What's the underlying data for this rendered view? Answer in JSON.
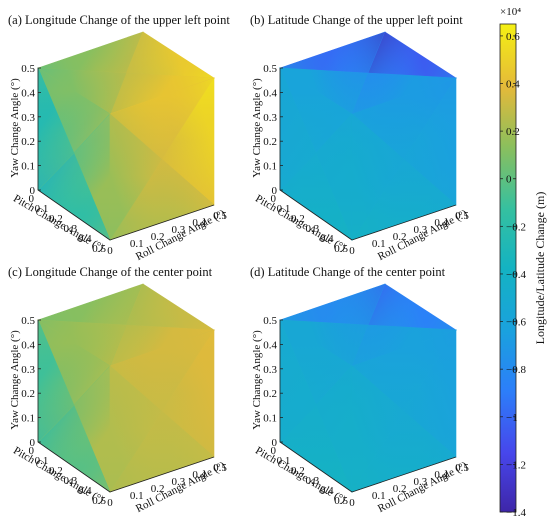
{
  "figure": {
    "colorbar": {
      "label": "Longitude/Latitude Change (m)",
      "exponent": "×10⁴",
      "ticks": [
        "0.6",
        "0.4",
        "0.2",
        "0",
        "−0.2",
        "−0.4",
        "−0.6",
        "−0.8",
        "−1",
        "−1.2",
        "−1.4"
      ],
      "tick_values": [
        0.6,
        0.4,
        0.2,
        0,
        -0.2,
        -0.4,
        -0.6,
        -0.8,
        -1,
        -1.2,
        -1.4
      ],
      "range": [
        -1.4,
        0.65
      ],
      "colormap": "parula"
    }
  },
  "chart_data": [
    {
      "type": "heatmap",
      "title": "(a) Longitude Change of the upper left point",
      "xlabel": "Roll Change Angle (°)",
      "ylabel": "Pitch Change Angle (°)",
      "zlabel": "Yaw Change Angle (°)",
      "xticks": [
        "0",
        "0.1",
        "0.2",
        "0.3",
        "0.4",
        "0.5"
      ],
      "yticks": [
        "0",
        "0.1",
        "0.2",
        "0.3",
        "0.4",
        "0.5"
      ],
      "zticks": [
        "0",
        "0.1",
        "0.2",
        "0.3",
        "0.4",
        "0.5"
      ],
      "xlim": [
        0,
        0.5
      ],
      "ylim": [
        0,
        0.5
      ],
      "zlim": [
        0,
        0.5
      ],
      "value_units": "×10⁴ m",
      "face_values": {
        "top": {
          "left": -0.05,
          "back": 0.3,
          "right": 0.62,
          "front": 0.25
        },
        "left": {
          "top_left": -0.05,
          "top_right": 0.25,
          "bottom_right": 0.1,
          "bottom_left": -0.45
        },
        "right": {
          "top_left": 0.25,
          "top_right": 0.62,
          "bottom_right": 0.4,
          "bottom_left": 0.1
        }
      }
    },
    {
      "type": "heatmap",
      "title": "(b) Latitude Change of the upper left point",
      "xlabel": "Roll Change Angle (°)",
      "ylabel": "Pitch Change Angle (°)",
      "zlabel": "Yaw Change Angle (°)",
      "xticks": [
        "0",
        "0.1",
        "0.2",
        "0.3",
        "0.4",
        "0.5"
      ],
      "yticks": [
        "0",
        "0.1",
        "0.2",
        "0.3",
        "0.4",
        "0.5"
      ],
      "zticks": [
        "0",
        "0.1",
        "0.2",
        "0.3",
        "0.4",
        "0.5"
      ],
      "xlim": [
        0,
        0.5
      ],
      "ylim": [
        0,
        0.5
      ],
      "zlim": [
        0,
        0.5
      ],
      "value_units": "×10⁴ m",
      "face_values": {
        "top": {
          "left": -0.6,
          "back": -1.35,
          "right": -0.75,
          "front": -0.6
        },
        "left": {
          "top_left": -0.6,
          "top_right": -0.6,
          "bottom_right": -0.35,
          "bottom_left": -0.5
        },
        "right": {
          "top_left": -0.6,
          "top_right": -0.75,
          "bottom_right": -0.55,
          "bottom_left": -0.35
        }
      }
    },
    {
      "type": "heatmap",
      "title": "(c) Longitude Change of the center point",
      "xlabel": "Roll Change Angle (°)",
      "ylabel": "Pitch Change Angle (°)",
      "zlabel": "Yaw Change Angle (°)",
      "xticks": [
        "0",
        "0.1",
        "0.2",
        "0.3",
        "0.4",
        "0.5"
      ],
      "yticks": [
        "0",
        "0.1",
        "0.2",
        "0.3",
        "0.4",
        "0.5"
      ],
      "zticks": [
        "0",
        "0.1",
        "0.2",
        "0.3",
        "0.4",
        "0.5"
      ],
      "xlim": [
        0,
        0.5
      ],
      "ylim": [
        0,
        0.5
      ],
      "zlim": [
        0,
        0.5
      ],
      "value_units": "×10⁴ m",
      "face_values": {
        "top": {
          "left": 0.05,
          "back": 0.2,
          "right": 0.4,
          "front": 0.28
        },
        "left": {
          "top_left": 0.05,
          "top_right": 0.28,
          "bottom_right": 0.2,
          "bottom_left": -0.25
        },
        "right": {
          "top_left": 0.28,
          "top_right": 0.4,
          "bottom_right": 0.32,
          "bottom_left": 0.2
        }
      }
    },
    {
      "type": "heatmap",
      "title": "(d) Latitude Change  of the center point",
      "xlabel": "Roll Change Angle (°)",
      "ylabel": "Pitch Change Angle (°)",
      "zlabel": "Yaw Change Angle (°)",
      "xticks": [
        "0",
        "0.1",
        "0.2",
        "0.3",
        "0.4",
        "0.5"
      ],
      "yticks": [
        "0",
        "0.1",
        "0.2",
        "0.3",
        "0.4",
        "0.5"
      ],
      "zticks": [
        "0",
        "0.1",
        "0.2",
        "0.3",
        "0.4",
        "0.5"
      ],
      "xlim": [
        0,
        0.5
      ],
      "ylim": [
        0,
        0.5
      ],
      "zlim": [
        0,
        0.5
      ],
      "value_units": "×10⁴ m",
      "face_values": {
        "top": {
          "left": -0.55,
          "back": -1.05,
          "right": -0.7,
          "front": -0.55
        },
        "left": {
          "top_left": -0.55,
          "top_right": -0.55,
          "bottom_right": -0.35,
          "bottom_left": -0.45
        },
        "right": {
          "top_left": -0.55,
          "top_right": -0.7,
          "bottom_right": -0.55,
          "bottom_left": -0.35
        }
      }
    }
  ]
}
